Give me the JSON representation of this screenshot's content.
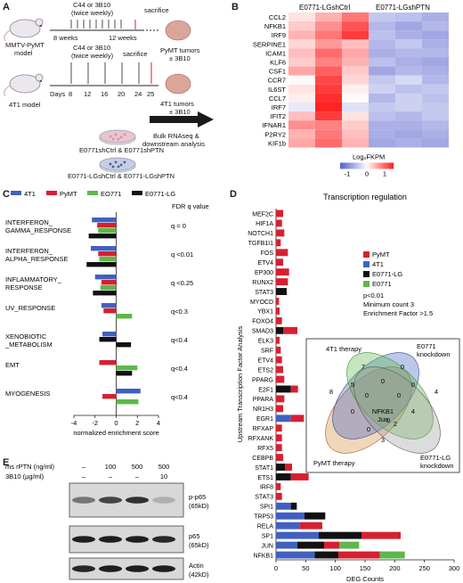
{
  "panels": {
    "A": {
      "letter": "A",
      "model1": "MMTV-PyMT\nmodel",
      "model2": "4T1 model",
      "treat1": "C44 or 3B10\n(twice weekly)",
      "treat2": "C44 or 3B10\n(twice weekly)",
      "weeks8": "8 weeks",
      "weeks12": "12 weeks",
      "sacrifice": "sacrifice",
      "days_label": "Days",
      "days": [
        "8",
        "12",
        "16",
        "20",
        "24",
        "25"
      ],
      "tumor1": "PyMT tumors\n± 3B10",
      "tumor2": "4T1 tumors\n± 3B10",
      "bulk": "Bulk RNAseq &\ndownstream analysis",
      "dish1": "E0771shCtrl & E0771shPTN",
      "dish2": "E0771-LGshCtrl & E0771-LGshPTN"
    },
    "B": {
      "letter": "B",
      "col1": "E0771-LGshCtrl",
      "col2": "E0771-LGshPTN",
      "genes": [
        "CCL2",
        "NFKB1",
        "IRF9",
        "SERPINE1",
        "ICAM1",
        "KLF6",
        "CSF1",
        "CCR7",
        "IL6ST",
        "CCL7",
        "IRF7",
        "IFIT2",
        "IFNAR1",
        "P2RY2",
        "KIF1b"
      ],
      "matrix": [
        [
          0.2,
          0.6,
          1.1,
          -0.6,
          -0.7,
          -0.9
        ],
        [
          0.4,
          0.9,
          1.4,
          -0.8,
          -1.0,
          -0.8
        ],
        [
          0.6,
          1.1,
          1.6,
          -0.7,
          -0.9,
          -1.0
        ],
        [
          0.3,
          0.8,
          0.5,
          -0.8,
          -0.6,
          -0.9
        ],
        [
          0.5,
          1.2,
          0.7,
          -0.9,
          -0.8,
          -0.8
        ],
        [
          0.4,
          1.0,
          0.6,
          -0.7,
          -0.9,
          -1.0
        ],
        [
          0.7,
          1.3,
          0.4,
          -1.0,
          -0.8,
          -0.9
        ],
        [
          0.0,
          1.5,
          0.3,
          -0.6,
          -0.4,
          -0.8
        ],
        [
          0.2,
          1.6,
          0.1,
          -0.5,
          -0.7,
          -0.6
        ],
        [
          0.1,
          1.7,
          0.0,
          -0.8,
          -0.5,
          -0.7
        ],
        [
          -0.2,
          1.8,
          -0.3,
          -0.6,
          -0.5,
          -0.6
        ],
        [
          0.5,
          1.6,
          0.2,
          -0.7,
          -0.8,
          -0.6
        ],
        [
          0.9,
          1.0,
          0.4,
          -0.9,
          -0.9,
          -0.8
        ],
        [
          0.6,
          1.1,
          0.5,
          -0.9,
          -1.0,
          -0.9
        ],
        [
          0.7,
          1.2,
          0.6,
          -1.0,
          -0.9,
          -1.0
        ]
      ],
      "legend_title": "Log₂FKPM",
      "legend_ticks": [
        "-1",
        "0",
        "1"
      ]
    },
    "C": {
      "letter": "C",
      "legend": [
        {
          "name": "4T1",
          "color": "#4060c0"
        },
        {
          "name": "PyMT",
          "color": "#d62030"
        },
        {
          "name": "EO771",
          "color": "#5cb848"
        },
        {
          "name": "E0771-LG",
          "color": "#111111"
        }
      ],
      "fdr_header": "FDR q value",
      "xlabel": "normalized enrichment score",
      "xticks": [
        "-4",
        "-2",
        "0",
        "2",
        "4"
      ],
      "pathways": [
        {
          "label": "INTERFERON_\nGAMMA_RESPONSE",
          "fdr": "q = 0"
        },
        {
          "label": "INTERFERON_\nALPHA_RESPONSE",
          "fdr": "q <0.01"
        },
        {
          "label": "INFLAMMATORY_\nRESPONSE",
          "fdr": "q <0.25"
        },
        {
          "label": "UV_RESPONSE",
          "fdr": "q<0.3"
        },
        {
          "label": "XENOBIOTIC\n_METABOLISM",
          "fdr": "q<0.4"
        },
        {
          "label": "EMT",
          "fdr": "q<0.4"
        },
        {
          "label": "MYOGENESIS",
          "fdr": "q<0.4"
        }
      ]
    },
    "D": {
      "letter": "D",
      "title": "Transcription regulation",
      "ylabel": "Upstream Transcription Factor Analysis",
      "xlabel": "DEG Counts",
      "xticks": [
        "0",
        "50",
        "100",
        "150",
        "200",
        "250",
        "300"
      ],
      "legend": [
        {
          "name": "PyMT",
          "color": "#d62030"
        },
        {
          "name": "4T1",
          "color": "#4060c0"
        },
        {
          "name": "E0771-LG",
          "color": "#111111"
        },
        {
          "name": "E0771",
          "color": "#5cb848"
        }
      ],
      "notes": [
        "p<0.01",
        "Minimum count 3",
        "Enrichment Factor >1.5"
      ],
      "venn": {
        "labels": [
          "4T1 therapy",
          "E0771\nknockdown",
          "PyMT therapy",
          "E0771-LG\nknockdown"
        ],
        "numbers": [
          "7",
          "0",
          "8",
          "4",
          "5",
          "0",
          "0",
          "0",
          "0",
          "4",
          "0",
          "0",
          "2",
          "0",
          "3"
        ],
        "center": "NFKB1\nJun"
      }
    },
    "E": {
      "letter": "E",
      "row1_label": "ms rPTN (ng/ml)",
      "row1_values": [
        "–",
        "100",
        "500",
        "500"
      ],
      "row2_label": "3B10 (μg/ml)",
      "row2_values": [
        "–",
        "–",
        "–",
        "10"
      ],
      "blots": [
        "p-p65\n(65kD)",
        "p65\n(65kD)",
        "Actin\n(42kD)"
      ]
    }
  },
  "chart_data": [
    {
      "type": "bar",
      "title": "",
      "xlabel": "normalized enrichment score",
      "xlim": [
        -4,
        4
      ],
      "categories": [
        "INTERFERON_GAMMA_RESPONSE",
        "INTERFERON_ALPHA_RESPONSE",
        "INFLAMMATORY_RESPONSE",
        "UV_RESPONSE",
        "XENOBIOTIC_METABOLISM",
        "EMT",
        "MYOGENESIS"
      ],
      "series": [
        {
          "name": "4T1",
          "values": [
            -2.3,
            -2.4,
            -2.0,
            -1.4,
            -1.3,
            null,
            2.3
          ]
        },
        {
          "name": "PyMT",
          "values": [
            -1.8,
            -1.7,
            -1.4,
            -1.2,
            null,
            -1.6,
            -1.3
          ]
        },
        {
          "name": "EO771",
          "values": [
            -1.7,
            -1.6,
            -1.5,
            1.5,
            null,
            2.0,
            2.1
          ]
        },
        {
          "name": "E0771-LG",
          "values": [
            -2.6,
            -2.8,
            -2.2,
            null,
            -1.6,
            1.5,
            null
          ]
        }
      ],
      "series_extra": {
        "E0771-LG_xenobiotic_2": 1.4
      }
    },
    {
      "type": "bar",
      "title": "Transcription regulation",
      "xlabel": "DEG Counts",
      "ylabel": "Upstream Transcription Factor Analysis",
      "xlim": [
        0,
        300
      ],
      "categories": [
        "MEF2C",
        "HIF1A",
        "NOTCH1",
        "TGFB1I1",
        "FOS",
        "ETV4",
        "EP300",
        "RUNX2",
        "STAT3",
        "MYOCD",
        "YBX1",
        "FOXO4",
        "SMAD3",
        "ELK3",
        "SRF",
        "ETV4",
        "ETS2",
        "PPARG",
        "E2F1",
        "PPARA",
        "NR1H3",
        "EGR1",
        "RFXAP",
        "RFXANK",
        "RFX5",
        "CEBPB",
        "STAT1",
        "ETS1",
        "IRF8",
        "STAT3",
        "SPI1",
        "TRP53",
        "RELA",
        "SP1",
        "JUN",
        "NFKB1"
      ],
      "series": [
        {
          "name": "4T1",
          "values": [
            0,
            0,
            0,
            0,
            0,
            0,
            0,
            0,
            0,
            0,
            0,
            0,
            0,
            0,
            0,
            0,
            0,
            0,
            0,
            0,
            0,
            25,
            0,
            0,
            0,
            0,
            0,
            0,
            0,
            0,
            25,
            48,
            40,
            72,
            36,
            65
          ]
        },
        {
          "name": "E0771-LG",
          "values": [
            0,
            0,
            0,
            0,
            0,
            0,
            0,
            0,
            18,
            0,
            0,
            0,
            12,
            0,
            0,
            0,
            0,
            0,
            25,
            0,
            0,
            0,
            0,
            0,
            0,
            0,
            15,
            25,
            0,
            0,
            10,
            35,
            0,
            72,
            45,
            40
          ]
        },
        {
          "name": "PyMT",
          "values": [
            12,
            10,
            14,
            8,
            20,
            12,
            22,
            20,
            0,
            5,
            6,
            10,
            24,
            6,
            8,
            10,
            12,
            14,
            12,
            14,
            12,
            22,
            10,
            10,
            10,
            12,
            12,
            30,
            8,
            10,
            0,
            0,
            38,
            66,
            26,
            70
          ]
        },
        {
          "name": "E0771",
          "values": [
            0,
            0,
            0,
            0,
            0,
            0,
            0,
            0,
            0,
            0,
            0,
            0,
            0,
            0,
            0,
            0,
            0,
            0,
            0,
            0,
            0,
            0,
            0,
            0,
            0,
            0,
            0,
            0,
            0,
            0,
            0,
            0,
            0,
            0,
            33,
            42
          ]
        }
      ]
    }
  ]
}
